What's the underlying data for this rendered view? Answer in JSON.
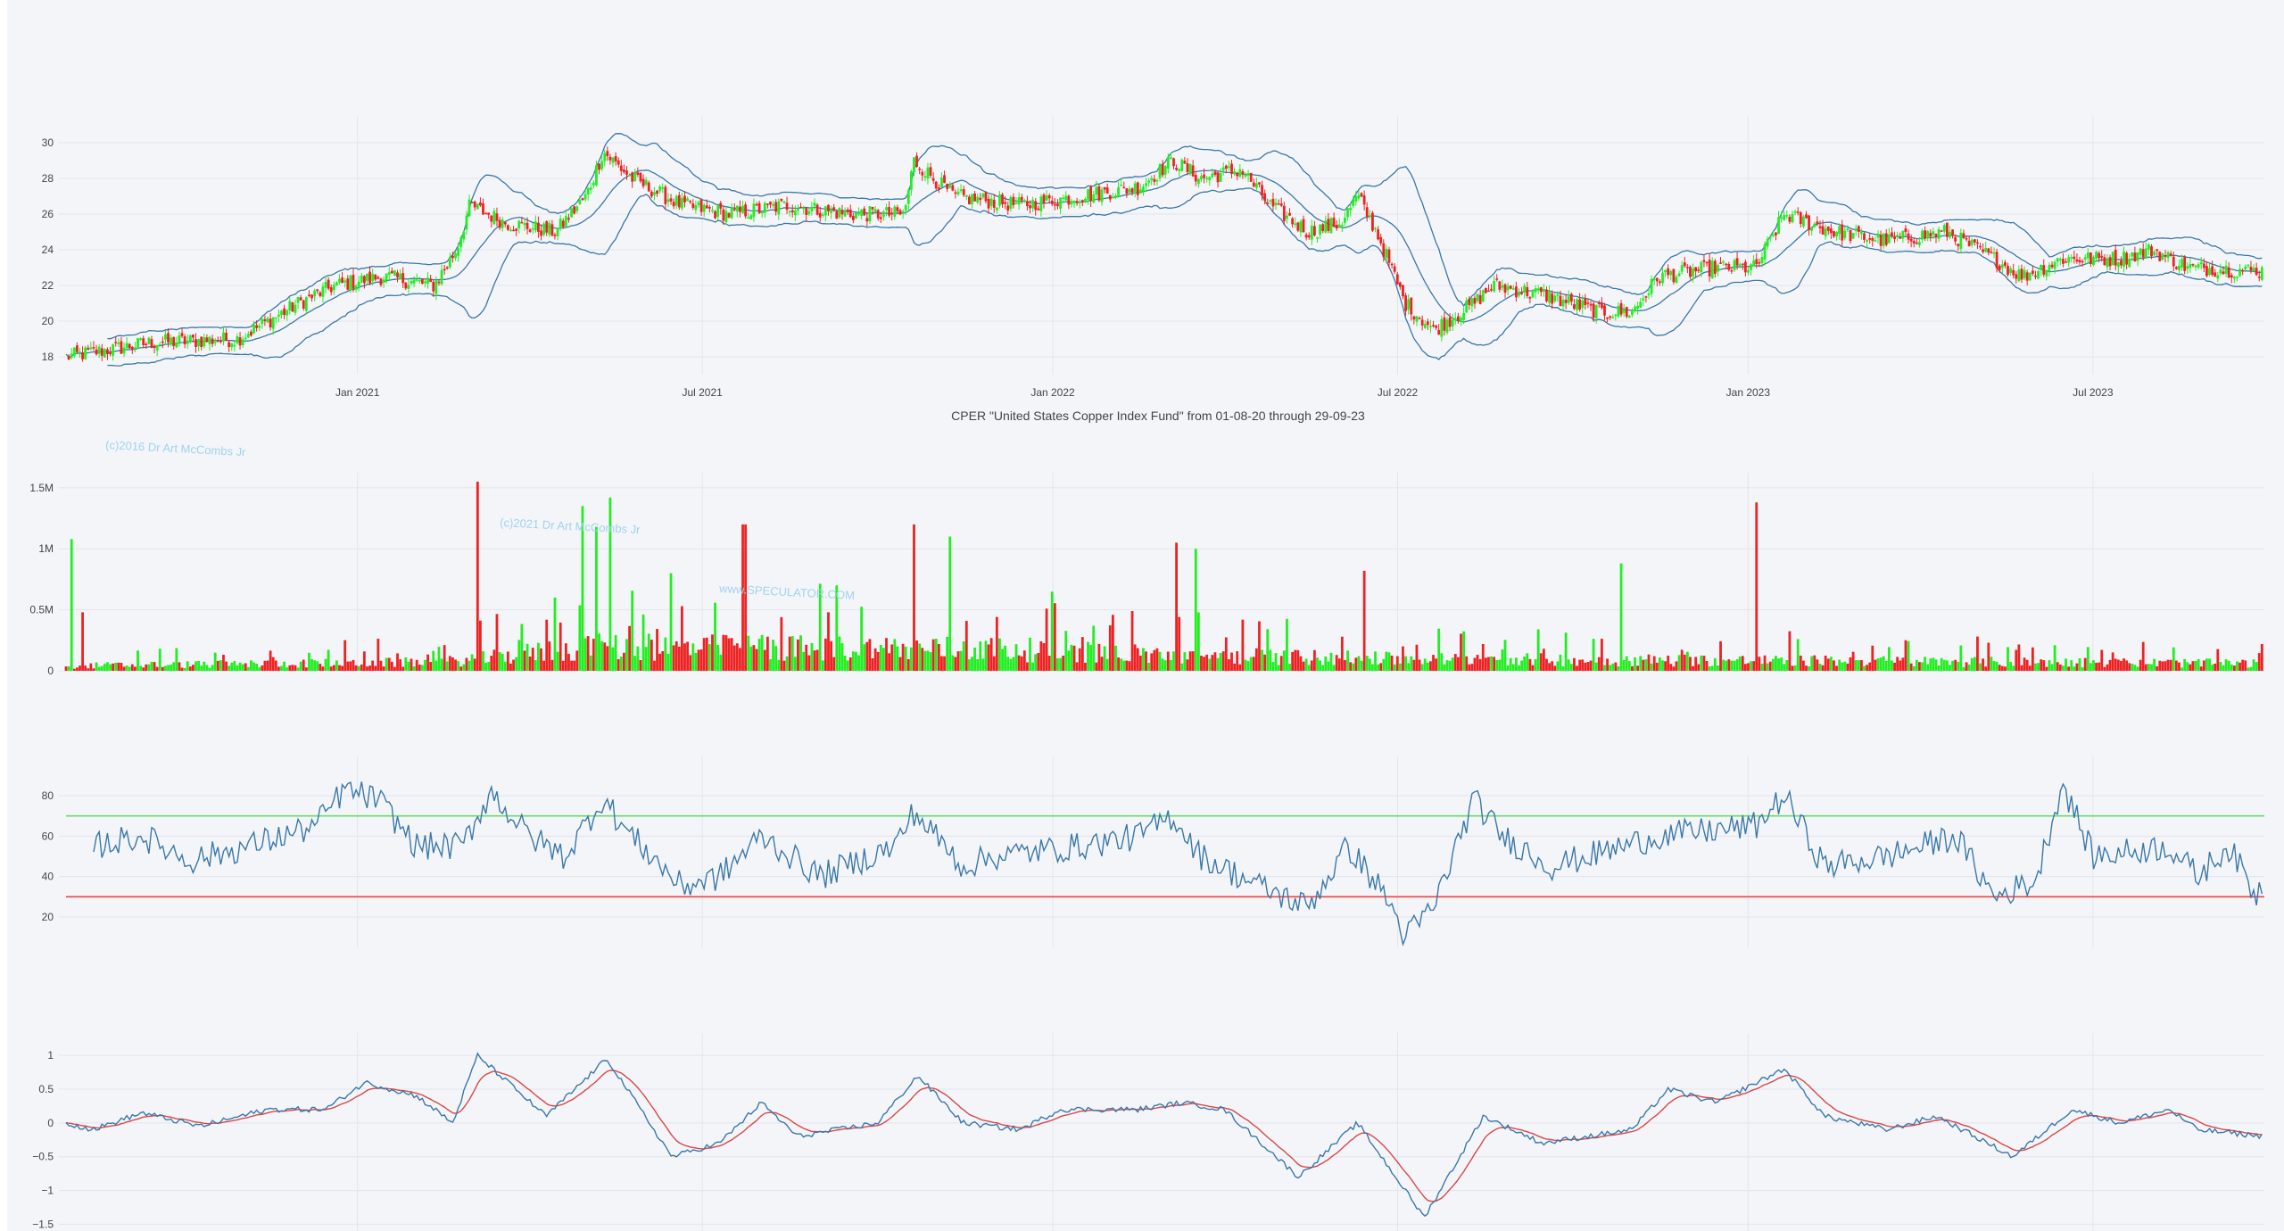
{
  "colors": {
    "up": "#22ee22",
    "down": "#ee2222",
    "line": "#3a78a8",
    "macd_signal": "#d84848",
    "rsi_upper": "#66dd66",
    "rsi_lower": "#ee4444",
    "grid": "#e3e5ea"
  },
  "caption": "CPER \"United States Copper Index Fund\" from 01-08-20 through 29-09-23",
  "watermarks": {
    "w1": "(c)2016 Dr Art McCombs Jr",
    "w2": "(c)2021 Dr Art McCombs Jr",
    "w3": "www.SPECULATOR.COM"
  },
  "chart_data": [
    {
      "type": "candlestick",
      "x_range": [
        "2020-08-01",
        "2023-09-29"
      ],
      "x_tick_labels": [
        "Jan 2021",
        "Jul 2021",
        "Jan 2022",
        "Jul 2022",
        "Jan 2023",
        "Jul 2023"
      ],
      "y_ticks": [
        18,
        20,
        22,
        24,
        26,
        28,
        30
      ],
      "ylim": [
        17,
        31
      ],
      "bollinger_bands": true,
      "price_anchors": [
        [
          "2020-08-01",
          18.0
        ],
        [
          "2020-09-15",
          18.8
        ],
        [
          "2020-10-30",
          19.0
        ],
        [
          "2020-12-01",
          21.0
        ],
        [
          "2020-12-20",
          22.0
        ],
        [
          "2021-01-15",
          22.5
        ],
        [
          "2021-02-10",
          22.0
        ],
        [
          "2021-02-22",
          24.0
        ],
        [
          "2021-03-01",
          26.5
        ],
        [
          "2021-03-20",
          25.5
        ],
        [
          "2021-04-15",
          25.0
        ],
        [
          "2021-05-01",
          27.0
        ],
        [
          "2021-05-10",
          29.5
        ],
        [
          "2021-05-25",
          28.0
        ],
        [
          "2021-06-20",
          26.5
        ],
        [
          "2021-07-15",
          26.0
        ],
        [
          "2021-08-15",
          26.5
        ],
        [
          "2021-09-15",
          26.0
        ],
        [
          "2021-10-15",
          26.0
        ],
        [
          "2021-10-20",
          29.0
        ],
        [
          "2021-11-10",
          27.0
        ],
        [
          "2021-12-15",
          26.5
        ],
        [
          "2022-01-15",
          27.0
        ],
        [
          "2022-02-15",
          27.5
        ],
        [
          "2022-03-05",
          29.0
        ],
        [
          "2022-03-20",
          28.0
        ],
        [
          "2022-04-10",
          28.5
        ],
        [
          "2022-04-25",
          26.5
        ],
        [
          "2022-05-15",
          25.0
        ],
        [
          "2022-06-01",
          25.5
        ],
        [
          "2022-06-10",
          27.0
        ],
        [
          "2022-06-20",
          25.0
        ],
        [
          "2022-07-05",
          21.0
        ],
        [
          "2022-07-20",
          19.5
        ],
        [
          "2022-08-10",
          21.0
        ],
        [
          "2022-08-20",
          22.0
        ],
        [
          "2022-09-15",
          21.5
        ],
        [
          "2022-10-15",
          20.5
        ],
        [
          "2022-11-01",
          20.5
        ],
        [
          "2022-11-15",
          22.5
        ],
        [
          "2022-12-15",
          23.0
        ],
        [
          "2023-01-05",
          23.0
        ],
        [
          "2023-01-20",
          26.0
        ],
        [
          "2023-02-15",
          25.0
        ],
        [
          "2023-03-15",
          24.5
        ],
        [
          "2023-04-15",
          25.0
        ],
        [
          "2023-05-10",
          23.5
        ],
        [
          "2023-05-25",
          22.5
        ],
        [
          "2023-06-15",
          23.5
        ],
        [
          "2023-07-15",
          23.5
        ],
        [
          "2023-08-01",
          24.0
        ],
        [
          "2023-08-20",
          23.0
        ],
        [
          "2023-09-29",
          22.8
        ]
      ]
    },
    {
      "type": "bar",
      "name": "volume",
      "y_tick_labels": [
        "0",
        "0.5M",
        "1M",
        "1.5M"
      ],
      "y_ticks": [
        0,
        500000,
        1000000,
        1500000
      ],
      "ylim": [
        0,
        1550000
      ],
      "base_level": 60000,
      "spikes": [
        [
          "2020-08-04",
          1080000
        ],
        [
          "2020-08-10",
          480000
        ],
        [
          "2021-03-05",
          1550000
        ],
        [
          "2021-04-29",
          1350000
        ],
        [
          "2021-05-06",
          1180000
        ],
        [
          "2021-05-13",
          1420000
        ],
        [
          "2021-06-15",
          800000
        ],
        [
          "2021-07-23",
          1200000
        ],
        [
          "2021-09-10",
          700000
        ],
        [
          "2021-10-20",
          1200000
        ],
        [
          "2021-11-08",
          1100000
        ],
        [
          "2022-03-07",
          1050000
        ],
        [
          "2022-03-17",
          1000000
        ],
        [
          "2022-06-14",
          820000
        ],
        [
          "2022-10-27",
          880000
        ],
        [
          "2023-01-06",
          1380000
        ]
      ]
    },
    {
      "type": "line",
      "name": "RSI",
      "y_ticks": [
        20,
        40,
        60,
        80
      ],
      "ylim": [
        5,
        95
      ],
      "reference_lines": [
        70,
        30
      ],
      "anchors": [
        [
          "2020-08-15",
          55
        ],
        [
          "2020-09-10",
          60
        ],
        [
          "2020-10-05",
          48
        ],
        [
          "2020-11-05",
          55
        ],
        [
          "2020-12-10",
          65
        ],
        [
          "2020-12-25",
          83
        ],
        [
          "2021-01-12",
          78
        ],
        [
          "2021-02-01",
          55
        ],
        [
          "2021-02-25",
          55
        ],
        [
          "2021-03-12",
          82
        ],
        [
          "2021-04-01",
          60
        ],
        [
          "2021-04-20",
          50
        ],
        [
          "2021-05-10",
          79
        ],
        [
          "2021-05-20",
          65
        ],
        [
          "2021-06-20",
          35
        ],
        [
          "2021-07-10",
          40
        ],
        [
          "2021-08-01",
          60
        ],
        [
          "2021-09-01",
          40
        ],
        [
          "2021-10-10",
          55
        ],
        [
          "2021-10-20",
          72
        ],
        [
          "2021-11-15",
          45
        ],
        [
          "2021-12-01",
          50
        ],
        [
          "2022-01-15",
          55
        ],
        [
          "2022-02-15",
          60
        ],
        [
          "2022-03-05",
          70
        ],
        [
          "2022-03-20",
          50
        ],
        [
          "2022-04-20",
          35
        ],
        [
          "2022-05-15",
          25
        ],
        [
          "2022-06-05",
          55
        ],
        [
          "2022-06-25",
          30
        ],
        [
          "2022-07-05",
          10
        ],
        [
          "2022-07-20",
          25
        ],
        [
          "2022-08-10",
          78
        ],
        [
          "2022-08-25",
          60
        ],
        [
          "2022-09-20",
          45
        ],
        [
          "2022-11-15",
          60
        ],
        [
          "2023-01-05",
          65
        ],
        [
          "2023-01-20",
          80
        ],
        [
          "2023-02-10",
          45
        ],
        [
          "2023-03-15",
          50
        ],
        [
          "2023-04-20",
          60
        ],
        [
          "2023-05-10",
          30
        ],
        [
          "2023-06-01",
          38
        ],
        [
          "2023-06-15",
          86
        ],
        [
          "2023-07-01",
          50
        ],
        [
          "2023-08-10",
          55
        ],
        [
          "2023-08-25",
          40
        ],
        [
          "2023-09-10",
          55
        ],
        [
          "2023-09-25",
          30
        ],
        [
          "2023-09-29",
          40
        ]
      ]
    },
    {
      "type": "line",
      "name": "MACD",
      "y_tick_labels": [
        "1",
        "0.5",
        "0",
        "−0.5",
        "−1",
        "−1.5"
      ],
      "y_ticks": [
        1,
        0.5,
        0,
        -0.5,
        -1,
        -1.5
      ],
      "ylim": [
        -1.6,
        1.2
      ],
      "signal_line": true,
      "anchors": [
        [
          "2020-08-01",
          0
        ],
        [
          "2020-08-15",
          -0.1
        ],
        [
          "2020-09-10",
          0.15
        ],
        [
          "2020-10-10",
          -0.05
        ],
        [
          "2020-11-15",
          0.2
        ],
        [
          "2020-12-15",
          0.2
        ],
        [
          "2021-01-05",
          0.6
        ],
        [
          "2021-02-01",
          0.4
        ],
        [
          "2021-02-20",
          0
        ],
        [
          "2021-03-05",
          1.0
        ],
        [
          "2021-04-10",
          0.1
        ],
        [
          "2021-05-12",
          0.95
        ],
        [
          "2021-06-15",
          -0.5
        ],
        [
          "2021-07-10",
          -0.3
        ],
        [
          "2021-08-01",
          0.3
        ],
        [
          "2021-08-20",
          -0.2
        ],
        [
          "2021-10-01",
          0
        ],
        [
          "2021-10-22",
          0.7
        ],
        [
          "2021-11-15",
          0
        ],
        [
          "2021-12-15",
          -0.1
        ],
        [
          "2022-01-05",
          0.2
        ],
        [
          "2022-02-15",
          0.2
        ],
        [
          "2022-03-10",
          0.3
        ],
        [
          "2022-04-01",
          0.2
        ],
        [
          "2022-05-10",
          -0.8
        ],
        [
          "2022-06-10",
          0
        ],
        [
          "2022-07-15",
          -1.4
        ],
        [
          "2022-08-15",
          0.1
        ],
        [
          "2022-09-15",
          -0.3
        ],
        [
          "2022-11-01",
          -0.1
        ],
        [
          "2022-11-20",
          0.5
        ],
        [
          "2022-12-15",
          0.3
        ],
        [
          "2023-01-20",
          0.8
        ],
        [
          "2023-02-10",
          0.1
        ],
        [
          "2023-03-15",
          -0.1
        ],
        [
          "2023-04-10",
          0.1
        ],
        [
          "2023-05-20",
          -0.5
        ],
        [
          "2023-06-20",
          0.2
        ],
        [
          "2023-07-15",
          0
        ],
        [
          "2023-08-10",
          0.2
        ],
        [
          "2023-08-25",
          -0.1
        ],
        [
          "2023-09-29",
          -0.2
        ]
      ]
    }
  ]
}
